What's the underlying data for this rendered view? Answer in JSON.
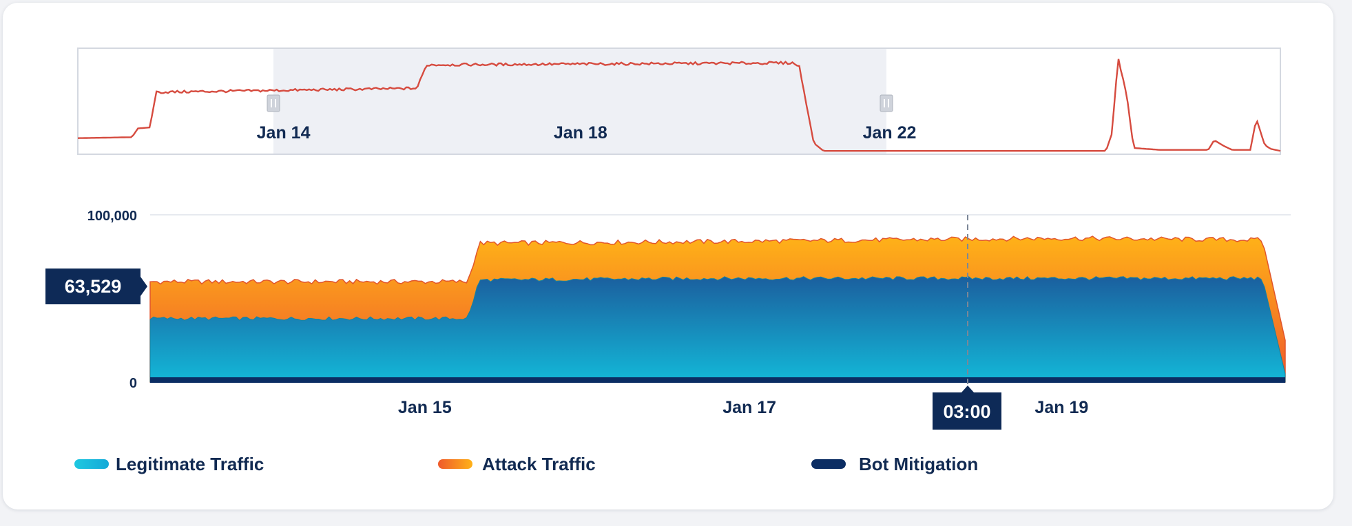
{
  "chart_data": {
    "type": "area",
    "title": "",
    "ylim": [
      0,
      100000
    ],
    "y_ticks": [
      {
        "value": 100000,
        "label": "100,000"
      },
      {
        "value": 0,
        "label": "0"
      }
    ],
    "x_ticks": [
      "Jan 15",
      "Jan 17",
      "Jan 19"
    ],
    "navigator": {
      "ticks": [
        "Jan 14",
        "Jan 18",
        "Jan 22"
      ],
      "selection": {
        "from": "Jan 13 18:00",
        "to": "Jan 20 00:00"
      },
      "series": [
        {
          "t": 0,
          "v": 15
        },
        {
          "t": 0.045,
          "v": 16
        },
        {
          "t": 0.05,
          "v": 25
        },
        {
          "t": 0.06,
          "v": 26
        },
        {
          "t": 0.065,
          "v": 62
        },
        {
          "t": 0.282,
          "v": 66
        },
        {
          "t": 0.29,
          "v": 90
        },
        {
          "t": 0.595,
          "v": 92
        },
        {
          "t": 0.6,
          "v": 88
        },
        {
          "t": 0.612,
          "v": 10
        },
        {
          "t": 0.62,
          "v": 2
        },
        {
          "t": 0.855,
          "v": 2
        },
        {
          "t": 0.86,
          "v": 20
        },
        {
          "t": 0.865,
          "v": 98
        },
        {
          "t": 0.872,
          "v": 60
        },
        {
          "t": 0.878,
          "v": 5
        },
        {
          "t": 0.9,
          "v": 3
        },
        {
          "t": 0.94,
          "v": 3
        },
        {
          "t": 0.945,
          "v": 13
        },
        {
          "t": 0.953,
          "v": 7
        },
        {
          "t": 0.96,
          "v": 3
        },
        {
          "t": 0.975,
          "v": 3
        },
        {
          "t": 0.98,
          "v": 35
        },
        {
          "t": 0.987,
          "v": 8
        },
        {
          "t": 0.992,
          "v": 4
        },
        {
          "t": 1.0,
          "v": 2
        }
      ]
    },
    "series": [
      {
        "name": "Legitimate Traffic",
        "color_start": "#13b8d8",
        "color_end": "#1b5f9e",
        "points": [
          {
            "t": 0,
            "v": 38000
          },
          {
            "t": 0.28,
            "v": 38000
          },
          {
            "t": 0.29,
            "v": 61000
          },
          {
            "t": 0.5,
            "v": 62000
          },
          {
            "t": 0.8,
            "v": 62000
          },
          {
            "t": 0.98,
            "v": 62000
          },
          {
            "t": 1.0,
            "v": 5000
          }
        ]
      },
      {
        "name": "Attack Traffic",
        "color_start": "#ef5a2b",
        "color_end": "#ffb218",
        "points": [
          {
            "t": 0,
            "v": 60000
          },
          {
            "t": 0.28,
            "v": 60000
          },
          {
            "t": 0.29,
            "v": 83000
          },
          {
            "t": 0.5,
            "v": 84000
          },
          {
            "t": 0.8,
            "v": 86000
          },
          {
            "t": 0.98,
            "v": 85000
          },
          {
            "t": 1.0,
            "v": 25000
          }
        ]
      },
      {
        "name": "Bot Mitigation",
        "color_start": "#0b2d63",
        "color_end": "#0b2d63",
        "points": [
          {
            "t": 0,
            "v": 1500
          },
          {
            "t": 1.0,
            "v": 1500
          }
        ]
      }
    ],
    "tooltip": {
      "value": "63,529",
      "time": "03:00"
    },
    "legend": [
      "Legitimate Traffic",
      "Attack Traffic",
      "Bot Mitigation"
    ],
    "legend_position": "bottom-left",
    "grid": true
  }
}
